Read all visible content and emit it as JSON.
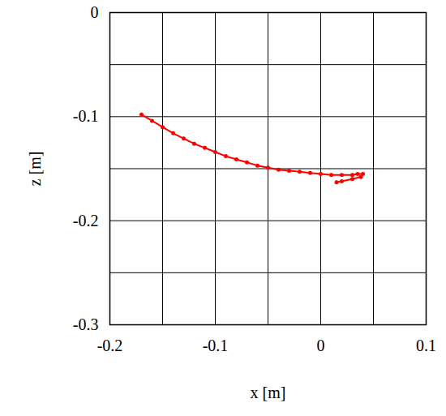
{
  "chart_data": {
    "type": "line",
    "marker": "circle",
    "color": "#ff0000",
    "x_label": "x [m]",
    "y_label": "z [m]",
    "x": [
      -0.17,
      -0.16,
      -0.15,
      -0.14,
      -0.13,
      -0.12,
      -0.11,
      -0.1,
      -0.09,
      -0.08,
      -0.07,
      -0.06,
      -0.05,
      -0.04,
      -0.03,
      -0.02,
      -0.01,
      0,
      0.01,
      0.02,
      0.03,
      0.035,
      0.04,
      0.038,
      0.03,
      0.02,
      0.015
    ],
    "values": [
      -0.098,
      -0.104,
      -0.11,
      -0.116,
      -0.121,
      -0.126,
      -0.13,
      -0.134,
      -0.138,
      -0.141,
      -0.144,
      -0.147,
      -0.149,
      -0.151,
      -0.152,
      -0.153,
      -0.154,
      -0.155,
      -0.156,
      -0.156,
      -0.156,
      -0.155,
      -0.155,
      -0.158,
      -0.16,
      -0.162,
      -0.163
    ],
    "xlim": [
      -0.2,
      0.1
    ],
    "xticks": [
      -0.2,
      -0.1,
      0,
      0.1
    ],
    "ylim": [
      -0.3,
      0
    ],
    "yticks": [
      0,
      -0.1,
      -0.2,
      -0.3
    ],
    "grid": true
  }
}
